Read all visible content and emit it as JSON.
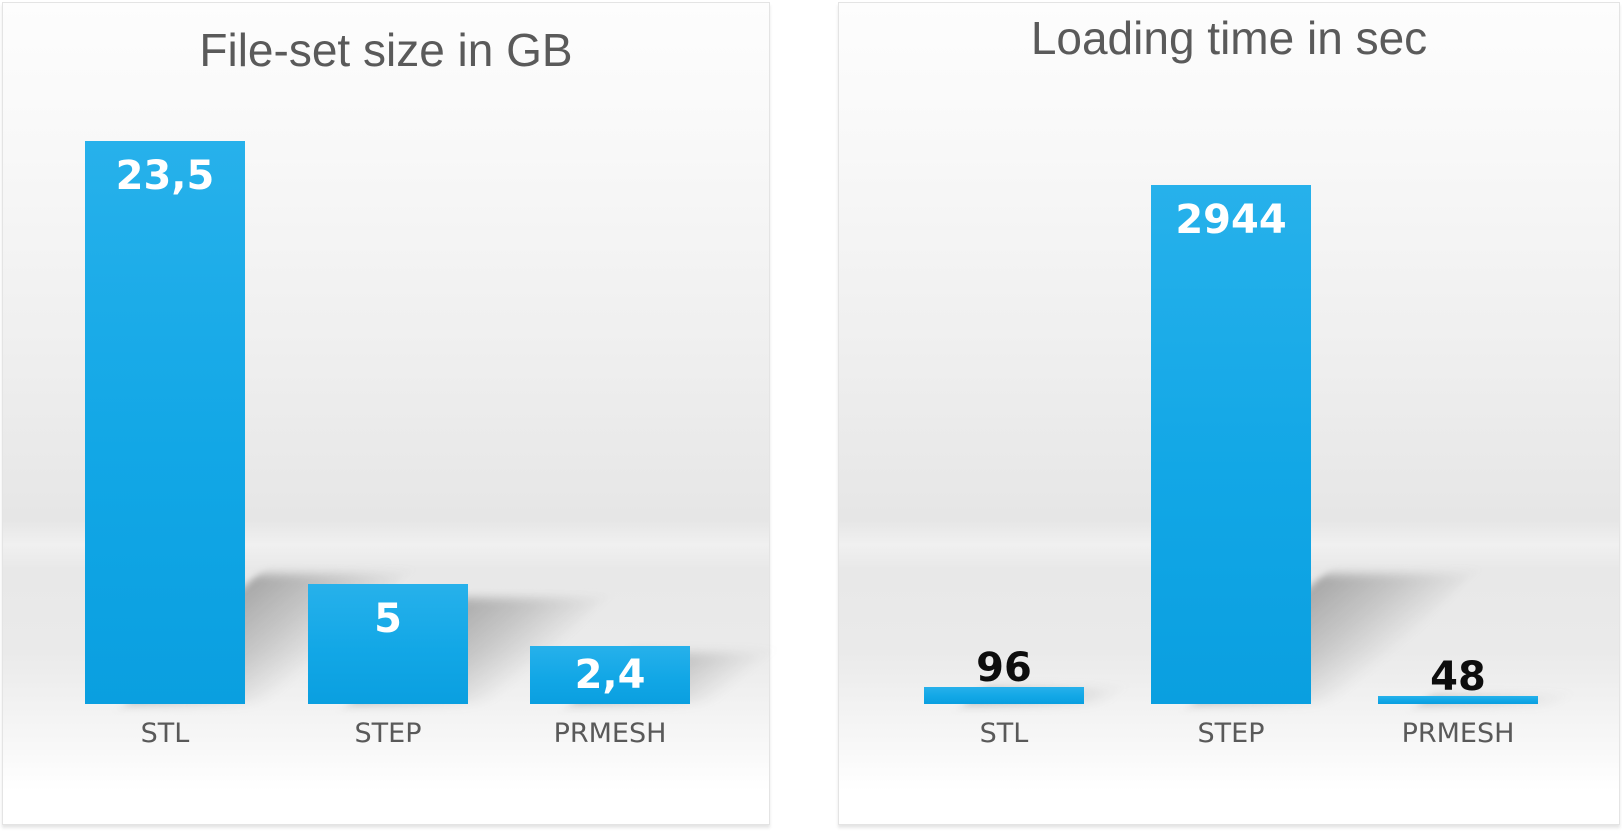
{
  "colors": {
    "page_background": "#ffffff",
    "card_border": "#e4e4e4",
    "card_background_top": "#fdfdfd",
    "card_background_floor": "#e6e6e6",
    "bar_fill_top": "#27b1eb",
    "bar_fill_bottom": "#0a9fe0",
    "title_text": "#5a5a5a",
    "category_text": "#595959",
    "value_inside_text": "#ffffff",
    "value_outside_text": "#0d0d0d",
    "shadow": "rgba(95,95,95,0.48)"
  },
  "chart_data": [
    {
      "type": "bar",
      "title": "File-set size in GB",
      "categories": [
        "STL",
        "STEP",
        "PRMESH"
      ],
      "values": [
        23.5,
        5,
        2.4
      ],
      "value_labels": [
        "23,5",
        "5",
        "2,4"
      ],
      "value_label_position": [
        "inside-top",
        "inside-top",
        "inside-middle"
      ],
      "value_label_colors": [
        "#ffffff",
        "#ffffff",
        "#ffffff"
      ],
      "ylabel": "",
      "xlabel": "",
      "ylim": [
        0,
        23.7
      ],
      "grid": false,
      "legend": false,
      "number_format": "decimal-comma"
    },
    {
      "type": "bar",
      "title": "Loading time in sec",
      "categories": [
        "STL",
        "STEP",
        "PRMESH"
      ],
      "values": [
        96,
        2944,
        48
      ],
      "value_labels": [
        "96",
        "2944",
        "48"
      ],
      "value_label_position": [
        "above",
        "inside-top",
        "above"
      ],
      "value_label_colors": [
        "#0d0d0d",
        "#ffffff",
        "#0d0d0d"
      ],
      "ylabel": "",
      "xlabel": "",
      "ylim": [
        0,
        3220
      ],
      "grid": false,
      "legend": false,
      "number_format": "integer"
    }
  ]
}
